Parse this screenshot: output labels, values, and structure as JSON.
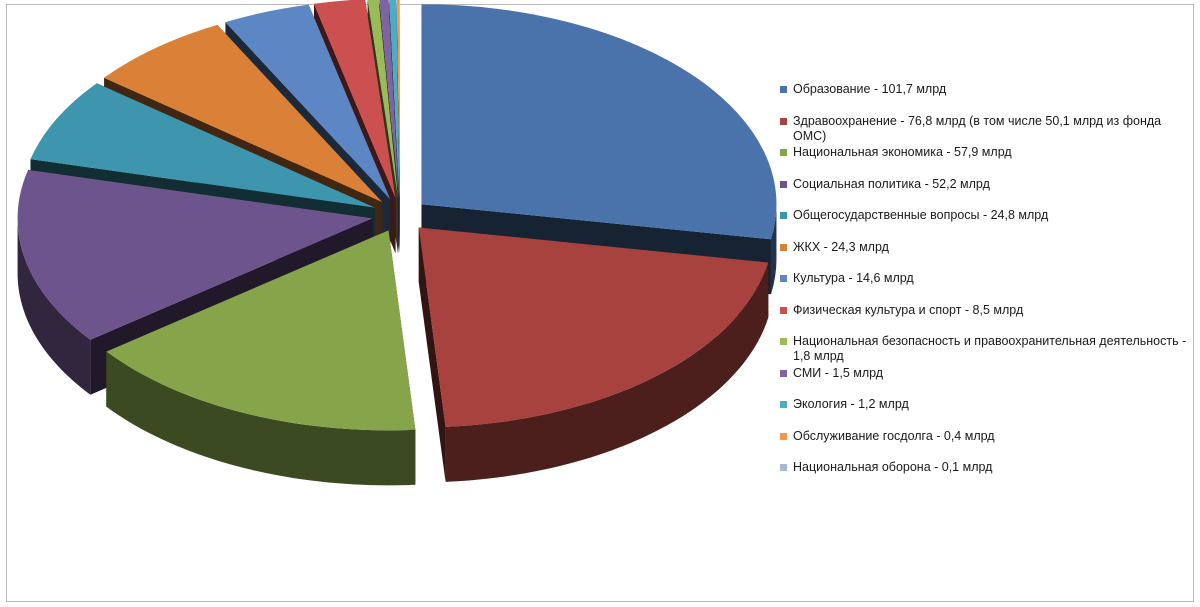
{
  "chart_data": {
    "type": "pie",
    "title": "",
    "unit": "млрд",
    "series": [
      {
        "label": "Образование - 101,7 млрд",
        "value": 101.7,
        "color": "#4a73ab"
      },
      {
        "label": "Здравоохранение - 76,8 млрд (в том числе 50,1 млрд из фонда ОМС)",
        "value": 76.8,
        "color": "#a8423f"
      },
      {
        "label": "Национальная экономика - 57,9 млрд",
        "value": 57.9,
        "color": "#86a44a"
      },
      {
        "label": "Социальная политика - 52,2 млрд",
        "value": 52.2,
        "color": "#6e548d"
      },
      {
        "label": "Общегосударственные вопросы - 24,8 млрд",
        "value": 24.8,
        "color": "#3d96ae"
      },
      {
        "label": "ЖКХ - 24,3 млрд",
        "value": 24.3,
        "color": "#da8137"
      },
      {
        "label": "Культура - 14,6 млрд",
        "value": 14.6,
        "color": "#5d87c4"
      },
      {
        "label": "Физическая культура и спорт - 8,5 млрд",
        "value": 8.5,
        "color": "#cc5050"
      },
      {
        "label": "Национальная безопасность и правоохранительная деятельность - 1,8 млрд",
        "value": 1.8,
        "color": "#9bbb59"
      },
      {
        "label": "СМИ - 1,5 млрд",
        "value": 1.5,
        "color": "#8064a2"
      },
      {
        "label": "Экология - 1,2 млрд",
        "value": 1.2,
        "color": "#4bacc6"
      },
      {
        "label": "Обслуживание госдолга - 0,4 млрд",
        "value": 0.4,
        "color": "#f79646"
      },
      {
        "label": "Национальная оборона - 0,1 млрд",
        "value": 0.1,
        "color": "#a5b9d7"
      }
    ],
    "legend_position": "right",
    "exploded": true,
    "style": "3d"
  }
}
